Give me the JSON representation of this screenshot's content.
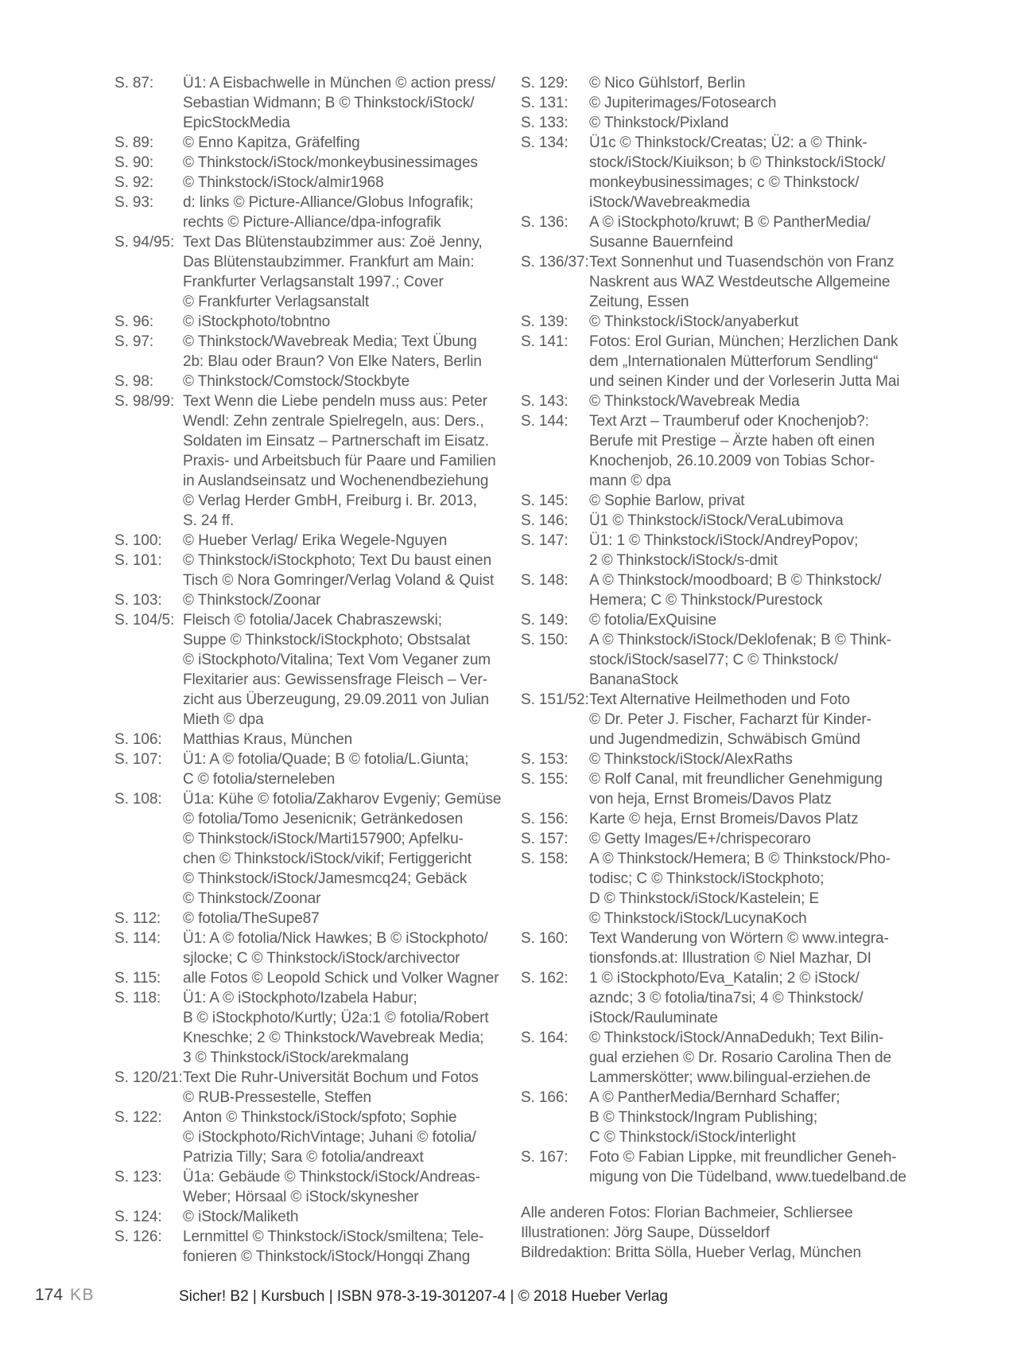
{
  "credits": {
    "left": [
      {
        "ref": "S. 87:",
        "text": "Ü1: A Eisbachwelle in München © action press/\nSebastian Widmann; B © Thinkstock/iStock/\nEpicStockMedia"
      },
      {
        "ref": "S. 89:",
        "text": "© Enno Kapitza, Gräfelfing"
      },
      {
        "ref": "S. 90:",
        "text": "© Thinkstock/iStock/monkeybusinessimages"
      },
      {
        "ref": "S. 92:",
        "text": "© Thinkstock/iStock/almir1968"
      },
      {
        "ref": "S. 93:",
        "text": "d: links © Picture-Alliance/Globus Infografik;\nrechts © Picture-Alliance/dpa-infografik"
      },
      {
        "ref": "S. 94/95:",
        "text": "Text Das Blütenstaubzimmer aus: Zoë Jenny,\nDas Blütenstaubzimmer. Frankfurt am Main:\nFrankfurter Verlagsanstalt 1997.; Cover\n© Frankfurter Verlagsanstalt"
      },
      {
        "ref": "S. 96:",
        "text": "© iStockphoto/tobntno"
      },
      {
        "ref": "S. 97:",
        "text": "© Thinkstock/Wavebreak Media; Text Übung\n2b: Blau oder Braun? Von Elke Naters, Berlin"
      },
      {
        "ref": "S. 98:",
        "text": "© Thinkstock/Comstock/Stockbyte"
      },
      {
        "ref": "S. 98/99:",
        "text": "Text Wenn die Liebe pendeln muss aus: Peter\nWendl: Zehn zentrale Spielregeln, aus: Ders.,\nSoldaten im Einsatz – Partnerschaft im Eisatz.\nPraxis- und Arbeitsbuch für Paare und Familien\nin Auslandseinsatz und Wochenendbeziehung\n© Verlag Herder GmbH, Freiburg i. Br. 2013,\nS. 24 ff."
      },
      {
        "ref": "S. 100:",
        "text": "© Hueber Verlag/ Erika Wegele-Nguyen"
      },
      {
        "ref": "S. 101:",
        "text": "© Thinkstock/iStockphoto; Text Du baust einen\nTisch © Nora Gomringer/Verlag Voland & Quist"
      },
      {
        "ref": "S. 103:",
        "text": "© Thinkstock/Zoonar"
      },
      {
        "ref": "S. 104/5:",
        "text": "Fleisch © fotolia/Jacek Chabraszewski;\nSuppe © Thinkstock/iStockphoto; Obstsalat\n© iStockphoto/Vitalina; Text Vom Veganer zum\nFlexitarier aus: Gewissensfrage Fleisch – Ver-\nzicht aus Überzeugung, 29.09.2011 von Julian\nMieth © dpa"
      },
      {
        "ref": "S. 106:",
        "text": "Matthias Kraus, München"
      },
      {
        "ref": "S. 107:",
        "text": "Ü1: A © fotolia/Quade; B © fotolia/L.Giunta;\nC © fotolia/sterneleben"
      },
      {
        "ref": "S. 108:",
        "text": "Ü1a: Kühe © fotolia/Zakharov Evgeniy; Gemüse\n© fotolia/Tomo Jesenicnik; Getränkedosen\n© Thinkstock/iStock/Marti157900; Apfelku-\nchen © Thinkstock/iStock/vikif; Fertiggericht\n© Thinkstock/iStock/Jamesmcq24; Gebäck\n© Thinkstock/Zoonar"
      },
      {
        "ref": "S. 112:",
        "text": "© fotolia/TheSupe87"
      },
      {
        "ref": "S. 114:",
        "text": "Ü1: A © fotolia/Nick Hawkes; B © iStockphoto/\nsjlocke; C © Thinkstock/iStock/archivector"
      },
      {
        "ref": "S. 115:",
        "text": "alle Fotos © Leopold Schick und Volker Wagner"
      },
      {
        "ref": "S. 118:",
        "text": "Ü1: A © iStockphoto/Izabela Habur;\nB © iStockphoto/Kurtly; Ü2a:1 © fotolia/Robert\nKneschke; 2 © Thinkstock/Wavebreak Media;\n3 © Thinkstock/iStock/arekmalang"
      },
      {
        "ref": "S. 120/21:",
        "text": "Text Die Ruhr-Universität Bochum und Fotos\n© RUB-Pressestelle, Steffen"
      },
      {
        "ref": "S. 122:",
        "text": "Anton © Thinkstock/iStock/spfoto; Sophie\n© iStockphoto/RichVintage; Juhani © fotolia/\nPatrizia Tilly; Sara © fotolia/andreaxt"
      },
      {
        "ref": "S. 123:",
        "text": "Ü1a: Gebäude © Thinkstock/iStock/Andreas-\nWeber; Hörsaal © iStock/skynesher"
      },
      {
        "ref": "S. 124:",
        "text": "© iStock/Maliketh"
      },
      {
        "ref": "S. 126:",
        "text": "Lernmittel © Thinkstock/iStock/smiltena; Tele-\nfonieren © Thinkstock/iStock/Hongqi Zhang"
      }
    ],
    "right": [
      {
        "ref": "S. 129:",
        "text": "© Nico Gühlstorf, Berlin"
      },
      {
        "ref": "S. 131:",
        "text": "© Jupiterimages/Fotosearch"
      },
      {
        "ref": "S. 133:",
        "text": "© Thinkstock/Pixland"
      },
      {
        "ref": "S. 134:",
        "text": "Ü1c © Thinkstock/Creatas; Ü2: a © Think-\nstock/iStock/Kiuikson; b © Thinkstock/iStock/\nmonkeybusinessimages; c © Thinkstock/\niStock/Wavebreakmedia"
      },
      {
        "ref": "S. 136:",
        "text": "A © iStockphoto/kruwt; B © PantherMedia/\nSusanne Bauernfeind"
      },
      {
        "ref": "S. 136/37:",
        "text": "Text Sonnenhut und Tuasendschön von Franz\nNaskrent aus WAZ Westdeutsche Allgemeine\nZeitung, Essen"
      },
      {
        "ref": "S. 139:",
        "text": "© Thinkstock/iStock/anyaberkut"
      },
      {
        "ref": "S. 141:",
        "text": "Fotos: Erol Gurian, München; Herzlichen Dank\ndem „Internationalen Mütterforum Sendling“\nund seinen Kinder und der Vorleserin Jutta Mai"
      },
      {
        "ref": "S. 143:",
        "text": "© Thinkstock/Wavebreak Media"
      },
      {
        "ref": "S. 144:",
        "text": "Text Arzt – Traumberuf oder Knochenjob?:\nBerufe mit Prestige – Ärzte haben oft einen\nKnochenjob, 26.10.2009 von Tobias Schor-\nmann © dpa"
      },
      {
        "ref": "S. 145:",
        "text": "© Sophie Barlow, privat"
      },
      {
        "ref": "S. 146:",
        "text": "Ü1 © Thinkstock/iStock/VeraLubimova"
      },
      {
        "ref": "S. 147:",
        "text": "Ü1: 1 © Thinkstock/iStock/AndreyPopov;\n2 © Thinkstock/iStock/s-dmit"
      },
      {
        "ref": "S. 148:",
        "text": "A © Thinkstock/moodboard; B © Thinkstock/\nHemera; C © Thinkstock/Purestock"
      },
      {
        "ref": "S. 149:",
        "text": "© fotolia/ExQuisine"
      },
      {
        "ref": "S. 150:",
        "text": "A © Thinkstock/iStock/Deklofenak; B © Think-\nstock/iStock/sasel77; C © Thinkstock/\nBananaStock"
      },
      {
        "ref": "S. 151/52:",
        "text": "Text Alternative Heilmethoden und Foto\n© Dr. Peter J. Fischer, Facharzt für Kinder-\nund Jugendmedizin, Schwäbisch Gmünd"
      },
      {
        "ref": "S. 153:",
        "text": "© Thinkstock/iStock/AlexRaths"
      },
      {
        "ref": "S. 155:",
        "text": "© Rolf Canal, mit freundlicher Genehmigung\nvon heja, Ernst Bromeis/Davos Platz"
      },
      {
        "ref": "S. 156:",
        "text": "Karte © heja, Ernst Bromeis/Davos Platz"
      },
      {
        "ref": "S. 157:",
        "text": "© Getty Images/E+/chrispecoraro"
      },
      {
        "ref": "S. 158:",
        "text": "A © Thinkstock/Hemera; B © Thinkstock/Pho-\ntodisc; C © Thinkstock/iStockphoto;\nD © Thinkstock/iStock/Kastelein; E\n© Thinkstock/iStock/LucynaKoch"
      },
      {
        "ref": "S. 160:",
        "text": "Text Wanderung von Wörtern © www.integra-\ntionsfonds.at: Illustration © Niel Mazhar, DI"
      },
      {
        "ref": "S. 162:",
        "text": "1 © iStockphoto/Eva_Katalin; 2 © iStock/\nazndc; 3 © fotolia/tina7si; 4 © Thinkstock/\niStock/Rauluminate"
      },
      {
        "ref": "S. 164:",
        "text": "© Thinkstock/iStock/AnnaDedukh; Text Bilin-\ngual erziehen © Dr. Rosario Carolina Then de\nLammerskötter; www.bilingual-erziehen.de"
      },
      {
        "ref": "S. 166:",
        "text": "A © PantherMedia/Bernhard Schaffer;\nB © Thinkstock/Ingram Publishing;\nC © Thinkstock/iStock/interlight"
      },
      {
        "ref": "S. 167:",
        "text": "Foto © Fabian Lippke, mit freundlicher Geneh-\nmigung von Die Tüdelband, www.tuedelband.de"
      }
    ]
  },
  "closing_lines": [
    "Alle anderen Fotos: Florian Bachmeier, Schliersee",
    "Illustrationen: Jörg Saupe, Düsseldorf",
    "Bildredaktion: Britta Sölla, Hueber Verlag, München"
  ],
  "footer": {
    "page_number": "174",
    "book_code": "KB",
    "center": "Sicher! B2 | Kursbuch | ISBN 978-3-19-301207-4 | © 2018 Hueber Verlag"
  }
}
